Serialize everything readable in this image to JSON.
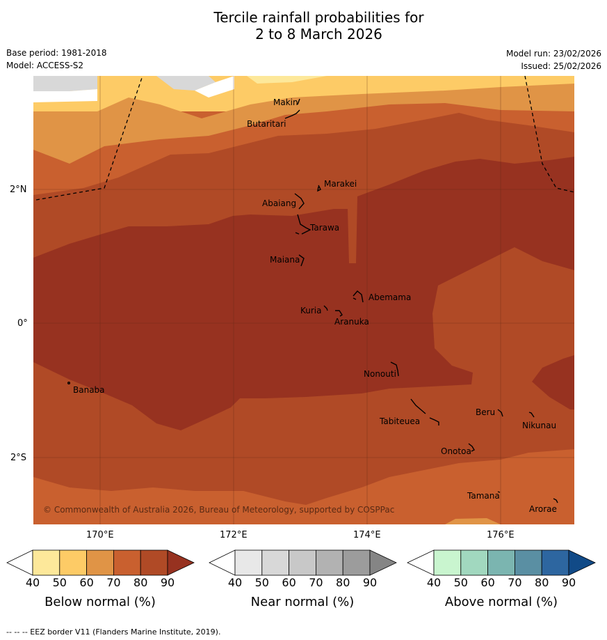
{
  "title": {
    "line1": "Tercile rainfall probabilities for",
    "line2": "2 to 8 March 2026"
  },
  "meta": {
    "base_period": "Base period: 1981-2018",
    "model": "Model: ACCESS-S2",
    "model_run": "Model run: 23/02/2026",
    "issued": "Issued: 25/02/2026"
  },
  "map": {
    "credit": "© Commonwealth of Australia 2026, Bureau of Meteorology, supported by COSPPac",
    "lat_ticks": [
      "2°N",
      "0°",
      "2°S"
    ],
    "lon_ticks": [
      "170°E",
      "172°E",
      "174°E",
      "176°E"
    ],
    "places": [
      "Makin",
      "Butaritari",
      "Marakei",
      "Abaiang",
      "Tarawa",
      "Maiana",
      "Abemama",
      "Kuria",
      "Aranuka",
      "Nonouti",
      "Banaba",
      "Beru",
      "Nikunau",
      "Tabiteuea",
      "Onotoa",
      "Tamana",
      "Arorae"
    ],
    "colors": {
      "below_40": "#fde89a",
      "below_50": "#fdcb66",
      "below_60": "#e09446",
      "below_70": "#c9602f",
      "below_80": "#b04a26",
      "below_90": "#973220",
      "near_40": "#e8e8e8",
      "near_50": "#d8d8d8"
    }
  },
  "colorbars": [
    {
      "label": "Below normal (%)",
      "ticks": [
        "40",
        "50",
        "60",
        "70",
        "80",
        "90"
      ],
      "colors": [
        "#ffffff",
        "#fde89a",
        "#fdcb66",
        "#e09446",
        "#c9602f",
        "#b04a26",
        "#973220"
      ]
    },
    {
      "label": "Near normal (%)",
      "ticks": [
        "40",
        "50",
        "60",
        "70",
        "80",
        "90"
      ],
      "colors": [
        "#ffffff",
        "#e8e8e8",
        "#d8d8d8",
        "#c8c8c8",
        "#b2b2b2",
        "#9c9c9c",
        "#858585"
      ]
    },
    {
      "label": "Above normal (%)",
      "ticks": [
        "40",
        "50",
        "60",
        "70",
        "80",
        "90"
      ],
      "colors": [
        "#ffffff",
        "#c9f5cf",
        "#a1d8bf",
        "#7bb5b0",
        "#5a8fa3",
        "#2d66a0",
        "#114a87"
      ]
    }
  ],
  "footer": "-- -- -- EEZ border V11 (Flanders Marine Institute, 2019)."
}
